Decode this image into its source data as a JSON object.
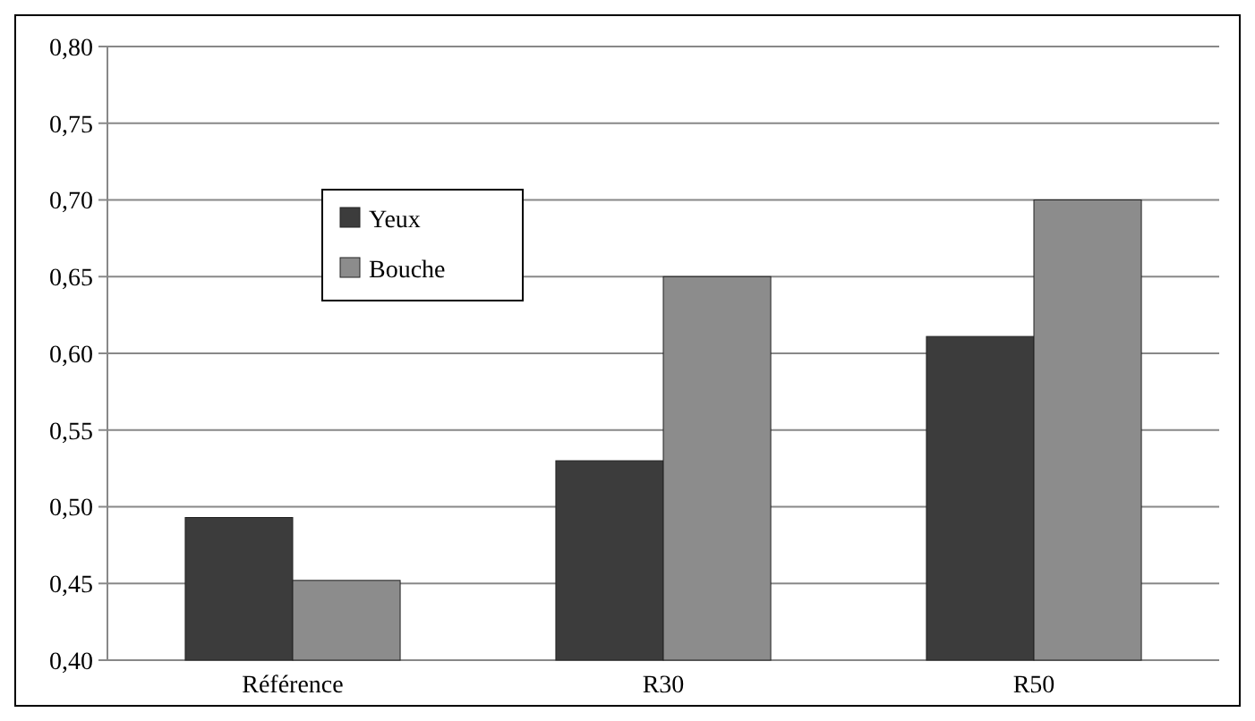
{
  "chart_data": {
    "type": "bar",
    "categories": [
      "Référence",
      "R30",
      "R50"
    ],
    "series": [
      {
        "name": "Yeux",
        "color": "#3c3c3c",
        "values": [
          0.493,
          0.53,
          0.611
        ]
      },
      {
        "name": "Bouche",
        "color": "#8c8c8c",
        "values": [
          0.452,
          0.65,
          0.7
        ]
      }
    ],
    "ylim": [
      0.4,
      0.8
    ],
    "yticks": [
      {
        "value": 0.4,
        "label": "0,40"
      },
      {
        "value": 0.45,
        "label": "0,45"
      },
      {
        "value": 0.5,
        "label": "0,50"
      },
      {
        "value": 0.55,
        "label": "0,55"
      },
      {
        "value": 0.6,
        "label": "0,60"
      },
      {
        "value": 0.65,
        "label": "0,65"
      },
      {
        "value": 0.7,
        "label": "0,70"
      },
      {
        "value": 0.75,
        "label": "0,75"
      },
      {
        "value": 0.8,
        "label": "0,80"
      }
    ],
    "grid": "y",
    "legend": "top left"
  }
}
